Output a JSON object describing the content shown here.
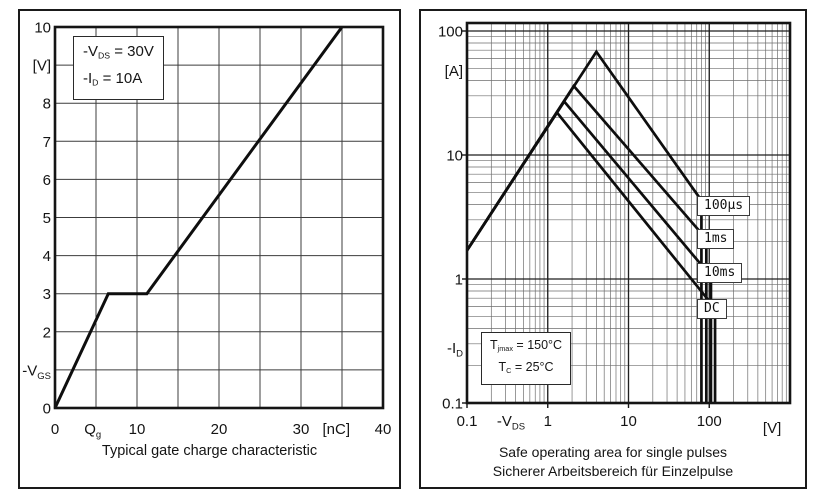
{
  "left_panel": {
    "legend": {
      "line1": {
        "pre": "-V",
        "sub": "DS",
        "post": " = 30V"
      },
      "line2": {
        "pre": "-I",
        "sub": "D",
        "post": " = 10A"
      }
    },
    "caption": "Typical gate charge characteristic"
  },
  "right_panel": {
    "conditions": {
      "line1": {
        "pre": "T",
        "sub": "jmax",
        "post": " = 150°C"
      },
      "line2": {
        "pre": "T",
        "sub": "C",
        "post": " = 25°C"
      }
    },
    "curve_labels": {
      "l1": "100µs",
      "l2": "1ms",
      "l3": "10ms",
      "l4": "DC"
    },
    "caption_line1": "Safe operating area for single pulses",
    "caption_line2": "Sicherer Arbeitsbereich für Einzelpulse"
  },
  "chart_data": [
    {
      "type": "line",
      "title": "Typical gate charge characteristic",
      "xlabel": "Qg [nC]",
      "ylabel": "-VGS [V]",
      "log_x": false,
      "log_y": false,
      "grid": true,
      "xlim": [
        0,
        40
      ],
      "ylim": [
        0,
        10
      ],
      "x_gridstep": 5,
      "y_gridstep": 1,
      "x_tick_labels": [
        {
          "v": 0,
          "t": "0"
        },
        {
          "v": 4.6,
          "t": "Q",
          "sub": "g"
        },
        {
          "v": 10,
          "t": "10"
        },
        {
          "v": 20,
          "t": "20"
        },
        {
          "v": 30,
          "t": "30"
        },
        {
          "v": 34.3,
          "t": "[nC]"
        },
        {
          "v": 40,
          "t": "40"
        }
      ],
      "y_tick_labels": [
        {
          "v": 10,
          "t": "10"
        },
        {
          "v": 9,
          "t": "[V]"
        },
        {
          "v": 8,
          "t": "8"
        },
        {
          "v": 7,
          "t": "7"
        },
        {
          "v": 6,
          "t": "6"
        },
        {
          "v": 5,
          "t": "5"
        },
        {
          "v": 4,
          "t": "4"
        },
        {
          "v": 3,
          "t": "3"
        },
        {
          "v": 2,
          "t": "2"
        },
        {
          "v": 1,
          "t": "-V",
          "sub": "GS"
        },
        {
          "v": 0,
          "t": "0"
        }
      ],
      "conditions": [
        "-VDS = 30V",
        "-ID = 10A"
      ],
      "series": [
        {
          "name": "gate-charge",
          "points": [
            [
              0,
              0
            ],
            [
              6.5,
              3
            ],
            [
              11.2,
              3
            ],
            [
              35,
              10
            ]
          ]
        }
      ]
    },
    {
      "type": "line",
      "title": "Safe operating area for single pulses / Sicherer Arbeitsbereich für Einzelpulse",
      "xlabel": "-VDS [V]",
      "ylabel": "-ID [A]",
      "log_x": true,
      "log_y": true,
      "grid": true,
      "xlim": [
        0.1,
        1000
      ],
      "ylim": [
        0.1,
        116
      ],
      "x_tick_labels": [
        {
          "v": 0.1,
          "t": "0.1"
        },
        {
          "v": 0.35,
          "t": "-V",
          "sub": "DS"
        },
        {
          "v": 1,
          "t": "1"
        },
        {
          "v": 10,
          "t": "10"
        },
        {
          "v": 100,
          "t": "100"
        },
        {
          "v": 600,
          "t": "[V]",
          "dy": 7
        }
      ],
      "y_tick_labels": [
        {
          "v": 100,
          "t": "100"
        },
        {
          "v": 48,
          "t": "[A]"
        },
        {
          "v": 10,
          "t": "10"
        },
        {
          "v": 1,
          "t": "1"
        },
        {
          "v": 0.28,
          "t": "-I",
          "sub": "D"
        },
        {
          "v": 0.1,
          "t": "0.1"
        }
      ],
      "conditions": [
        "Tjmax = 150°C",
        "TC = 25°C"
      ],
      "series": [
        {
          "name": "100µs",
          "points": [
            [
              0.1,
              1.7
            ],
            [
              4.0,
              68
            ],
            [
              80,
              4.3
            ],
            [
              80,
              0.1
            ]
          ]
        },
        {
          "name": "1ms",
          "points": [
            [
              0.1,
              1.7
            ],
            [
              2.1,
              36
            ],
            [
              92,
              2.1
            ],
            [
              92,
              0.1
            ]
          ]
        },
        {
          "name": "10ms",
          "points": [
            [
              0.1,
              1.7
            ],
            [
              1.6,
              27
            ],
            [
              105,
              1.05
            ],
            [
              105,
              0.1
            ]
          ]
        },
        {
          "name": "DC",
          "points": [
            [
              0.1,
              1.7
            ],
            [
              1.3,
              22
            ],
            [
              118,
              0.58
            ],
            [
              118,
              0.1
            ]
          ]
        }
      ]
    }
  ]
}
